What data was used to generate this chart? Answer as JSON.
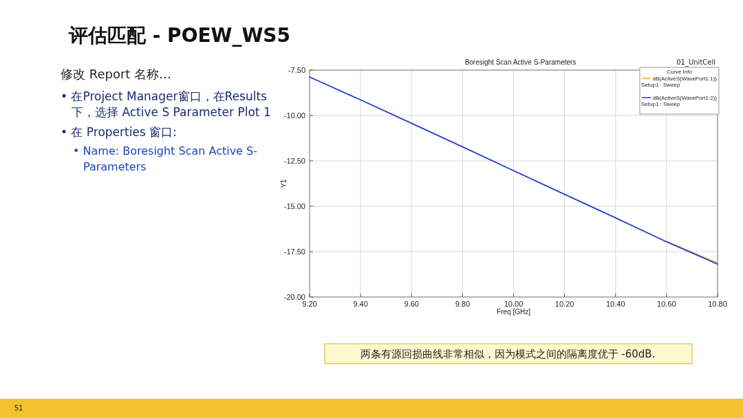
{
  "chart_data": {
    "type": "line",
    "title": "Boresight Scan Active S-Parameters",
    "xlabel": "Freq [GHz]",
    "ylabel": "Y1",
    "legend_title": "Curve Info",
    "x": [
      9.2,
      9.4,
      9.6,
      9.8,
      10.0,
      10.2,
      10.4,
      10.6,
      10.8
    ],
    "series": [
      {
        "name": "dB(ActiveS(WavePort1:1))\nSetup1 : Sweep",
        "color": "#f0a030",
        "values": [
          null,
          null,
          null,
          null,
          null,
          null,
          null,
          -16.93,
          -18.14
        ]
      },
      {
        "name": "dB(ActiveS(WavePort1:2))\nSetup1 : Sweep",
        "color": "#1f3fd0",
        "values": [
          -7.88,
          -9.14,
          -10.43,
          -11.73,
          -13.04,
          -14.34,
          -15.64,
          -16.96,
          -18.19
        ]
      }
    ],
    "xlim": [
      9.2,
      10.8
    ],
    "xticks": [
      {
        "value": 9.2,
        "label": "9.20"
      },
      {
        "value": 9.4,
        "label": "9.40"
      },
      {
        "value": 9.6,
        "label": "9.60"
      },
      {
        "value": 9.8,
        "label": "9.80"
      },
      {
        "value": 10.0,
        "label": "10.00"
      },
      {
        "value": 10.2,
        "label": "10.20"
      },
      {
        "value": 10.4,
        "label": "10.40"
      },
      {
        "value": 10.6,
        "label": "10.60"
      },
      {
        "value": 10.8,
        "label": "10.80"
      }
    ],
    "ylim": [
      -20,
      -7.5
    ],
    "yticks": [
      {
        "value": -20,
        "label": "-20.00"
      },
      {
        "value": -17.5,
        "label": "-17.50"
      },
      {
        "value": -15,
        "label": "-15.00"
      },
      {
        "value": -12.5,
        "label": "-12.50"
      },
      {
        "value": -10,
        "label": "-10.00"
      },
      {
        "value": -7.5,
        "label": "-7.50"
      }
    ],
    "grid": true,
    "legend": "top right",
    "marker": "none",
    "line_style": "solid",
    "annotations": [
      "01_UnitCell",
      "评估匹配 - POEW_WS5",
      "修改 Report 名称…",
      "• 在Project Manager窗口，在Results",
      "下，选择 Active S Parameter Plot 1",
      "• 在 Properties 窗口:",
      "• Name: Boresight Scan Active S-",
      "Parameters",
      "两条有源回损曲线非常相似，因为模式之间的隔离度优于 -60dB.",
      "51"
    ]
  }
}
